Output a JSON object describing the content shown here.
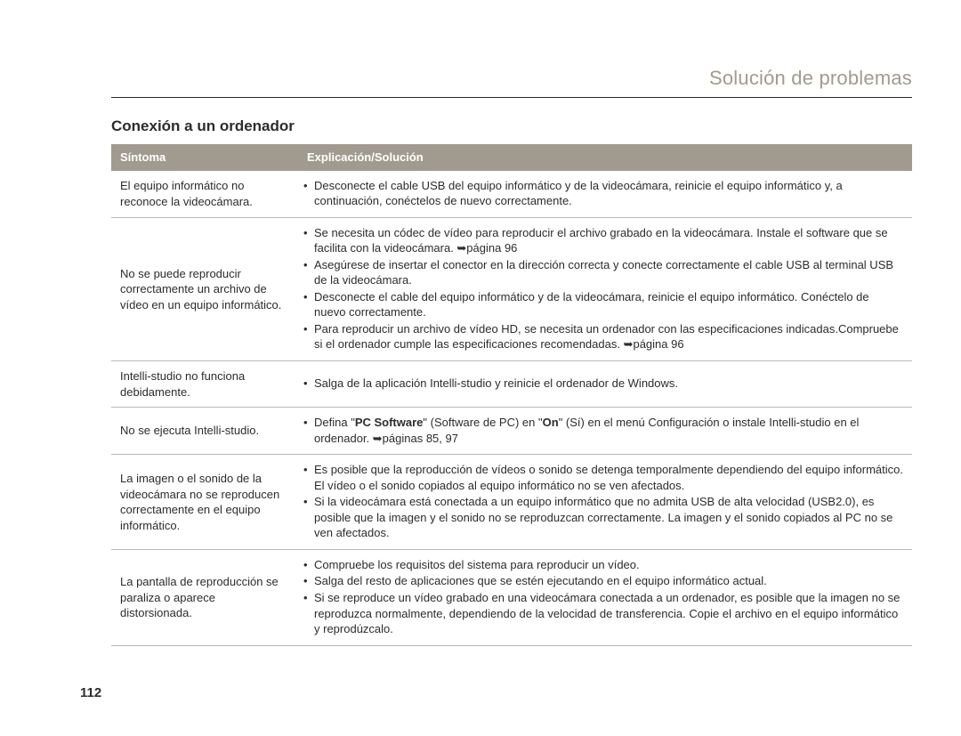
{
  "header": {
    "title": "Solución de problemas"
  },
  "section": {
    "title": "Conexión a un ordenador"
  },
  "table": {
    "col_symptom": "Síntoma",
    "col_explain": "Explicación/Solución",
    "rows": {
      "r0": {
        "symptom": "El equipo informático no reconoce la videocámara.",
        "b0": "Desconecte el cable USB del equipo informático y de la videocámara, reinicie el equipo informático y, a continuación, conéctelos de nuevo correctamente."
      },
      "r1": {
        "symptom": "No se puede reproducir correctamente un archivo de vídeo en un equipo informático.",
        "b0": "Se necesita un códec de vídeo para reproducir el archivo grabado en la videocámara. Instale el software que se facilita con la videocámara. ➥página 96",
        "b1": "Asegúrese de insertar el conector en la dirección correcta y conecte correctamente el cable USB al terminal USB de la videocámara.",
        "b2": "Desconecte el cable del equipo informático y de la videocámara, reinicie el equipo informático. Conéctelo de nuevo correctamente.",
        "b3": "Para reproducir un archivo de vídeo HD, se necesita un ordenador con las especificaciones indicadas.Compruebe si el ordenador cumple las especificaciones recomendadas. ➥página 96"
      },
      "r2": {
        "symptom": "Intelli-studio no funciona debidamente.",
        "b0": "Salga de la aplicación Intelli-studio y reinicie el ordenador de Windows."
      },
      "r3": {
        "symptom": "No se ejecuta Intelli-studio.",
        "b0_html": "Defina \"<b>PC Software</b>\" (Software de PC) en \"<b>On</b>\" (Sí) en el menú Configuración o instale Intelli-studio en el ordenador. ➥páginas 85, 97"
      },
      "r4": {
        "symptom": "La imagen o el sonido de la videocámara no se reproducen correctamente en el equipo informático.",
        "b0": "Es posible que la reproducción de vídeos o sonido se detenga temporalmente dependiendo del equipo informático. El vídeo o el sonido copiados al equipo informático no se ven afectados.",
        "b1": "Si la videocámara está conectada a un equipo informático que no admita USB de alta velocidad (USB2.0), es posible que la imagen y el sonido no se reproduzcan correctamente. La imagen y el sonido copiados al PC no se ven afectados."
      },
      "r5": {
        "symptom": "La pantalla de reproducción se paraliza o aparece distorsionada.",
        "b0": "Compruebe los requisitos del sistema para reproducir un vídeo.",
        "b1": "Salga del resto de aplicaciones que se estén ejecutando en el equipo informático actual.",
        "b2": "Si se reproduce un vídeo grabado en una videocámara conectada a un ordenador, es posible que la imagen no se reproduzca normalmente, dependiendo de la velocidad de transferencia. Copie el archivo en el equipo informático y reprodúzcalo."
      }
    }
  },
  "page_number": "112"
}
